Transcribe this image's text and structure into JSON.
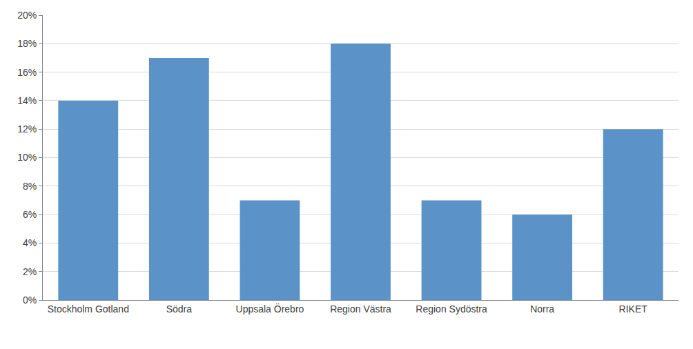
{
  "chart_data": {
    "type": "bar",
    "categories": [
      "Stockholm Gotland",
      "Södra",
      "Uppsala Örebro",
      "Region Västra",
      "Region Sydöstra",
      "Norra",
      "RIKET"
    ],
    "values": [
      14,
      17,
      7,
      18,
      7,
      6,
      12
    ],
    "color": "#5b93c8",
    "ylim": [
      0,
      20
    ],
    "yticks": [
      {
        "value": 0,
        "label": "0%"
      },
      {
        "value": 2,
        "label": "2%"
      },
      {
        "value": 4,
        "label": "4%"
      },
      {
        "value": 6,
        "label": "6%"
      },
      {
        "value": 8,
        "label": "8%"
      },
      {
        "value": 10,
        "label": "10%"
      },
      {
        "value": 12,
        "label": "12%"
      },
      {
        "value": 14,
        "label": "14%"
      },
      {
        "value": 16,
        "label": "16%"
      },
      {
        "value": 18,
        "label": "18%"
      },
      {
        "value": 20,
        "label": "20%"
      }
    ],
    "grid": true
  }
}
